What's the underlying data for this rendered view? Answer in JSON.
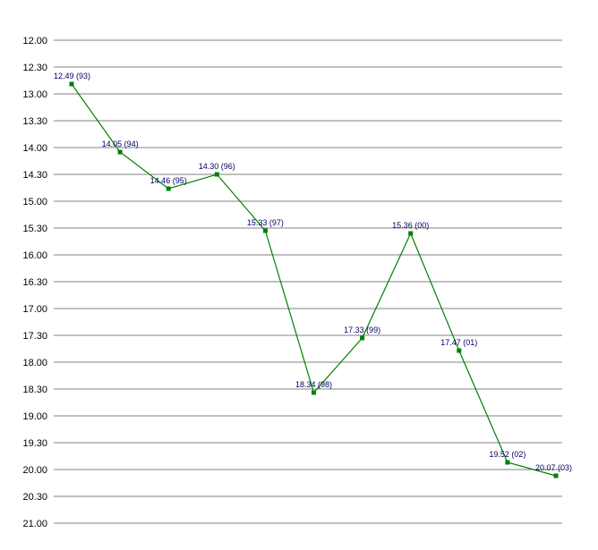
{
  "chart_data": {
    "type": "line",
    "title": "",
    "xlabel": "",
    "ylabel": "",
    "y_inverted": true,
    "ylim": [
      12.0,
      21.0
    ],
    "yticks": [
      "12.00",
      "12.30",
      "13.00",
      "13.30",
      "14.00",
      "14.30",
      "15.00",
      "15.30",
      "16.00",
      "16.30",
      "17.00",
      "17.30",
      "18.00",
      "18.30",
      "19.00",
      "19.30",
      "20.00",
      "20.30",
      "21.00"
    ],
    "grid": true,
    "legend": "none",
    "series_color": "#008000",
    "gridline_color": "#808080",
    "label_color": "#000066",
    "points": [
      {
        "value": 12.49,
        "label": "12.49 (93)"
      },
      {
        "value": 14.05,
        "label": "14.05 (94)"
      },
      {
        "value": 14.46,
        "label": "14.46 (95)"
      },
      {
        "value": 14.3,
        "label": "14.30 (96)"
      },
      {
        "value": 15.33,
        "label": "15.33 (97)"
      },
      {
        "value": 18.34,
        "label": "18.34 (98)"
      },
      {
        "value": 17.33,
        "label": "17.33 (99)"
      },
      {
        "value": 15.36,
        "label": "15.36 (00)"
      },
      {
        "value": 17.47,
        "label": "17.47 (01)"
      },
      {
        "value": 19.52,
        "label": "19.52 (02)"
      },
      {
        "value": 20.07,
        "label": "20.07 (03)"
      }
    ]
  }
}
